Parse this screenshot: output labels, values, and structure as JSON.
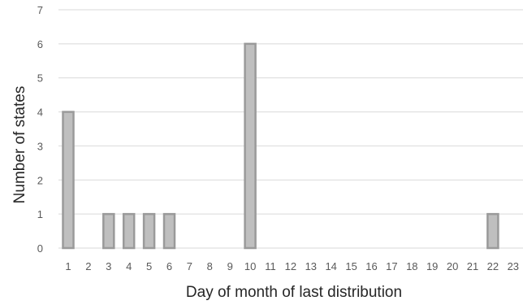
{
  "chart_data": {
    "type": "bar",
    "title": "",
    "xlabel": "Day of month of last distribution",
    "ylabel": "Number of states",
    "categories": [
      "1",
      "2",
      "3",
      "4",
      "5",
      "6",
      "7",
      "8",
      "9",
      "10",
      "11",
      "12",
      "13",
      "14",
      "15",
      "16",
      "17",
      "18",
      "19",
      "20",
      "21",
      "22",
      "23"
    ],
    "values": [
      4,
      0,
      1,
      1,
      1,
      1,
      0,
      0,
      0,
      6,
      0,
      0,
      0,
      0,
      0,
      0,
      0,
      0,
      0,
      0,
      0,
      1,
      0
    ],
    "ylim": [
      0,
      7
    ],
    "yticks": [
      0,
      1,
      2,
      3,
      4,
      5,
      6,
      7
    ],
    "grid": true,
    "legend": "none",
    "colors": {
      "bar_fill": "#bfbfbf",
      "bar_stroke": "#9a9a9a",
      "grid": "#d9d9d9",
      "tick_text": "#595959",
      "axis_title": "#262626"
    }
  }
}
